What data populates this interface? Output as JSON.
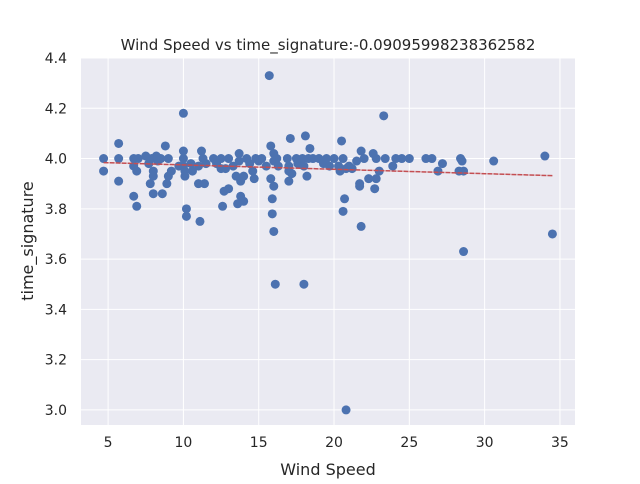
{
  "chart_data": {
    "type": "scatter",
    "title": "Wind Speed vs time_signature:-0.09095998238362582",
    "xlabel": "Wind Speed",
    "ylabel": "time_signature",
    "xlim": [
      3.2,
      36.0
    ],
    "ylim": [
      2.94,
      4.4
    ],
    "xticks": [
      5,
      10,
      15,
      20,
      25,
      30,
      35
    ],
    "xtick_labels": [
      "5",
      "10",
      "15",
      "20",
      "25",
      "30",
      "35"
    ],
    "yticks": [
      3.0,
      3.2,
      3.4,
      3.6,
      3.8,
      4.0,
      4.2,
      4.4
    ],
    "ytick_labels": [
      "3.0",
      "3.2",
      "3.4",
      "3.6",
      "3.8",
      "4.0",
      "4.2",
      "4.4"
    ],
    "grid": true,
    "background": "#eaeaf2",
    "grid_color": "#ffffff",
    "point_color": "#4c72b0",
    "line_color": "#c44e52",
    "trendline": {
      "x": [
        4.7,
        34.5
      ],
      "y": [
        3.984,
        3.932
      ]
    },
    "points": [
      [
        4.7,
        4.0
      ],
      [
        4.7,
        3.95
      ],
      [
        5.7,
        4.06
      ],
      [
        5.7,
        4.0
      ],
      [
        5.7,
        3.91
      ],
      [
        6.7,
        4.0
      ],
      [
        6.7,
        3.97
      ],
      [
        6.7,
        3.85
      ],
      [
        6.9,
        3.95
      ],
      [
        6.9,
        3.81
      ],
      [
        7.0,
        4.0
      ],
      [
        7.5,
        4.01
      ],
      [
        7.7,
        3.98
      ],
      [
        7.8,
        3.9
      ],
      [
        7.9,
        4.0
      ],
      [
        8.0,
        3.95
      ],
      [
        8.0,
        3.93
      ],
      [
        8.0,
        3.86
      ],
      [
        8.2,
        4.01
      ],
      [
        8.3,
        3.99
      ],
      [
        8.5,
        4.0
      ],
      [
        8.6,
        3.86
      ],
      [
        8.8,
        4.05
      ],
      [
        8.9,
        3.9
      ],
      [
        9.0,
        3.93
      ],
      [
        9.0,
        4.0
      ],
      [
        9.2,
        3.95
      ],
      [
        9.7,
        3.97
      ],
      [
        10.0,
        4.18
      ],
      [
        10.0,
        4.03
      ],
      [
        10.0,
        4.0
      ],
      [
        10.0,
        3.97
      ],
      [
        10.1,
        3.95
      ],
      [
        10.1,
        3.93
      ],
      [
        10.2,
        3.8
      ],
      [
        10.2,
        3.77
      ],
      [
        10.5,
        3.98
      ],
      [
        10.6,
        3.95
      ],
      [
        11.0,
        3.97
      ],
      [
        11.0,
        3.9
      ],
      [
        11.1,
        3.75
      ],
      [
        11.2,
        4.03
      ],
      [
        11.3,
        4.0
      ],
      [
        11.4,
        3.9
      ],
      [
        11.5,
        3.98
      ],
      [
        12.0,
        4.0
      ],
      [
        12.2,
        3.98
      ],
      [
        12.5,
        4.0
      ],
      [
        12.5,
        3.96
      ],
      [
        12.6,
        3.81
      ],
      [
        12.7,
        3.87
      ],
      [
        12.8,
        3.96
      ],
      [
        13.0,
        3.88
      ],
      [
        13.0,
        4.0
      ],
      [
        13.3,
        3.97
      ],
      [
        13.5,
        3.93
      ],
      [
        13.6,
        3.82
      ],
      [
        13.7,
        4.02
      ],
      [
        13.7,
        3.99
      ],
      [
        13.8,
        3.85
      ],
      [
        13.8,
        3.91
      ],
      [
        14.0,
        3.93
      ],
      [
        14.0,
        3.83
      ],
      [
        14.2,
        4.0
      ],
      [
        14.4,
        3.98
      ],
      [
        14.6,
        3.95
      ],
      [
        14.7,
        3.92
      ],
      [
        14.8,
        4.0
      ],
      [
        15.0,
        3.99
      ],
      [
        15.2,
        4.0
      ],
      [
        15.5,
        3.97
      ],
      [
        15.7,
        4.33
      ],
      [
        15.8,
        4.05
      ],
      [
        15.8,
        3.92
      ],
      [
        15.9,
        3.84
      ],
      [
        15.9,
        3.78
      ],
      [
        16.0,
        4.02
      ],
      [
        16.0,
        3.99
      ],
      [
        16.0,
        3.89
      ],
      [
        16.0,
        3.71
      ],
      [
        16.1,
        3.5
      ],
      [
        16.2,
        4.0
      ],
      [
        16.3,
        3.97
      ],
      [
        16.9,
        4.0
      ],
      [
        17.0,
        3.97
      ],
      [
        17.0,
        3.95
      ],
      [
        17.0,
        3.91
      ],
      [
        17.1,
        4.08
      ],
      [
        17.2,
        3.94
      ],
      [
        17.5,
        4.0
      ],
      [
        17.6,
        3.98
      ],
      [
        17.9,
        4.0
      ],
      [
        18.0,
        3.5
      ],
      [
        18.0,
        3.97
      ],
      [
        18.1,
        4.09
      ],
      [
        18.2,
        3.93
      ],
      [
        18.3,
        4.0
      ],
      [
        18.4,
        4.04
      ],
      [
        18.6,
        4.0
      ],
      [
        19.0,
        4.0
      ],
      [
        19.3,
        3.98
      ],
      [
        19.5,
        4.0
      ],
      [
        19.7,
        3.97
      ],
      [
        20.0,
        4.0
      ],
      [
        20.3,
        3.97
      ],
      [
        20.4,
        3.95
      ],
      [
        20.5,
        4.07
      ],
      [
        20.6,
        4.0
      ],
      [
        20.6,
        3.79
      ],
      [
        20.7,
        3.84
      ],
      [
        20.8,
        3.96
      ],
      [
        20.8,
        3.0
      ],
      [
        21.0,
        3.97
      ],
      [
        21.2,
        3.96
      ],
      [
        21.5,
        3.99
      ],
      [
        21.7,
        3.9
      ],
      [
        21.7,
        3.89
      ],
      [
        21.8,
        4.03
      ],
      [
        21.8,
        3.73
      ],
      [
        22.0,
        4.0
      ],
      [
        22.3,
        3.92
      ],
      [
        22.6,
        4.02
      ],
      [
        22.7,
        3.88
      ],
      [
        22.8,
        3.92
      ],
      [
        22.8,
        4.0
      ],
      [
        23.0,
        3.95
      ],
      [
        23.3,
        4.17
      ],
      [
        23.4,
        4.0
      ],
      [
        23.9,
        3.97
      ],
      [
        24.1,
        4.0
      ],
      [
        24.5,
        4.0
      ],
      [
        25.0,
        4.0
      ],
      [
        26.1,
        4.0
      ],
      [
        26.5,
        4.0
      ],
      [
        26.9,
        3.95
      ],
      [
        27.2,
        3.98
      ],
      [
        28.3,
        3.95
      ],
      [
        28.4,
        4.0
      ],
      [
        28.5,
        3.99
      ],
      [
        28.6,
        3.63
      ],
      [
        28.6,
        3.95
      ],
      [
        30.6,
        3.99
      ],
      [
        34.0,
        4.01
      ],
      [
        34.5,
        3.7
      ]
    ]
  }
}
